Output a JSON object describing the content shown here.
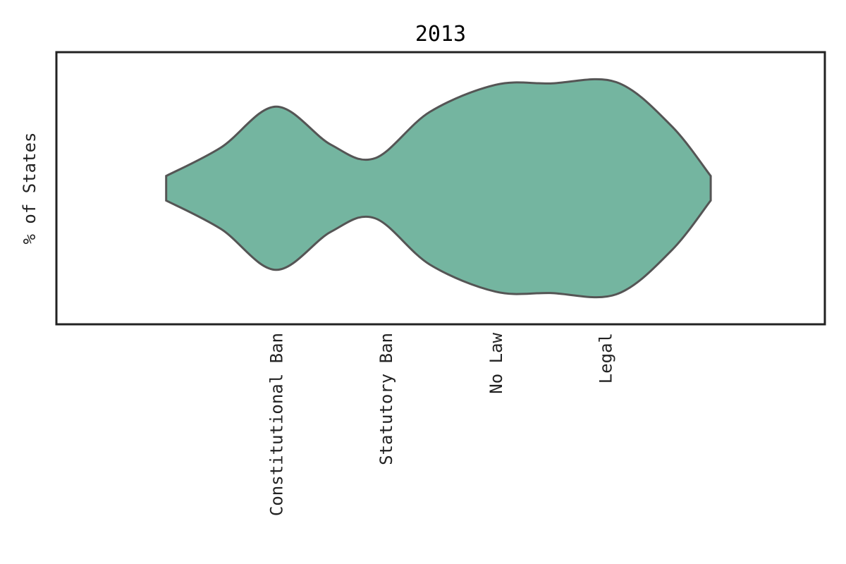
{
  "chart_data": {
    "type": "violin",
    "title": "2013",
    "ylabel": "% of States",
    "xlabel": "",
    "categories": [
      "Constitutional Ban",
      "Statutory Ban",
      "No Law",
      "Legal"
    ],
    "x_range": [
      -1.0,
      6.0
    ],
    "y_range": [
      -0.5,
      0.5
    ],
    "violin": {
      "name": "",
      "color": "#74b5a0",
      "edge_color": "#555555",
      "x_positions": [
        0.0,
        0.5,
        1.0,
        1.5,
        1.9,
        2.4,
        3.0,
        3.5,
        4.1,
        4.6,
        4.96
      ],
      "half_widths": [
        0.045,
        0.15,
        0.3,
        0.16,
        0.11,
        0.28,
        0.38,
        0.385,
        0.39,
        0.23,
        0.045
      ]
    },
    "grid": false,
    "legend": "none"
  }
}
